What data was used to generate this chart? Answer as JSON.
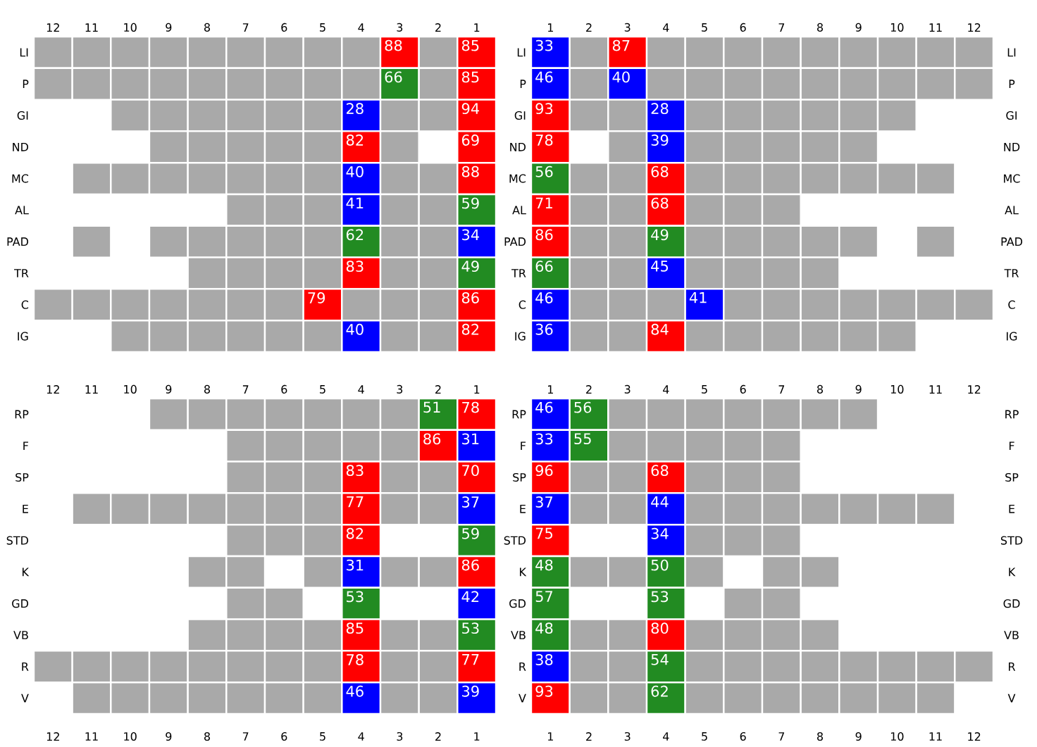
{
  "chart_data": [
    {
      "type": "heatmap",
      "data_labels": true,
      "categories": [
        "12",
        "11",
        "10",
        "9",
        "8",
        "7",
        "6",
        "5",
        "4",
        "3",
        "2",
        "1"
      ],
      "y_categories": [
        "LI",
        "P",
        "GI",
        "ND",
        "MC",
        "AL",
        "PAD",
        "TR",
        "C",
        "IG"
      ],
      "cells": [
        [
          null,
          null,
          null,
          null,
          null,
          null,
          null,
          null,
          null,
          88,
          null,
          85
        ],
        [
          null,
          null,
          null,
          null,
          null,
          null,
          null,
          null,
          null,
          66,
          null,
          85
        ],
        [
          null,
          null,
          null,
          null,
          null,
          null,
          null,
          null,
          28,
          null,
          null,
          94
        ],
        [
          null,
          null,
          null,
          null,
          null,
          null,
          null,
          null,
          82,
          null,
          null,
          69
        ],
        [
          null,
          null,
          null,
          null,
          null,
          null,
          null,
          null,
          40,
          null,
          null,
          88
        ],
        [
          null,
          null,
          null,
          null,
          null,
          null,
          null,
          null,
          41,
          null,
          null,
          59
        ],
        [
          null,
          null,
          null,
          null,
          null,
          null,
          null,
          null,
          62,
          null,
          null,
          34
        ],
        [
          null,
          null,
          null,
          null,
          null,
          null,
          null,
          null,
          83,
          null,
          null,
          49
        ],
        [
          null,
          null,
          null,
          null,
          null,
          null,
          null,
          79,
          null,
          null,
          null,
          86
        ],
        [
          null,
          null,
          null,
          null,
          null,
          null,
          null,
          null,
          40,
          null,
          null,
          82
        ]
      ],
      "colors": [
        [
          "#a9a9a9",
          "#a9a9a9",
          "#a9a9a9",
          "#a9a9a9",
          "#a9a9a9",
          "#a9a9a9",
          "#a9a9a9",
          "#a9a9a9",
          "#a9a9a9",
          "#ff0000",
          "#a9a9a9",
          "#ff0000"
        ],
        [
          "#a9a9a9",
          "#a9a9a9",
          "#a9a9a9",
          "#a9a9a9",
          "#a9a9a9",
          "#a9a9a9",
          "#a9a9a9",
          "#a9a9a9",
          "#a9a9a9",
          "#228b22",
          "#a9a9a9",
          "#ff0000"
        ],
        [
          null,
          null,
          "#a9a9a9",
          "#a9a9a9",
          "#a9a9a9",
          "#a9a9a9",
          "#a9a9a9",
          "#a9a9a9",
          "#0000ff",
          "#a9a9a9",
          "#a9a9a9",
          "#ff0000"
        ],
        [
          null,
          null,
          null,
          "#a9a9a9",
          "#a9a9a9",
          "#a9a9a9",
          "#a9a9a9",
          "#a9a9a9",
          "#ff0000",
          "#a9a9a9",
          null,
          "#ff0000"
        ],
        [
          null,
          "#a9a9a9",
          "#a9a9a9",
          "#a9a9a9",
          "#a9a9a9",
          "#a9a9a9",
          "#a9a9a9",
          "#a9a9a9",
          "#0000ff",
          "#a9a9a9",
          "#a9a9a9",
          "#ff0000"
        ],
        [
          null,
          null,
          null,
          null,
          null,
          "#a9a9a9",
          "#a9a9a9",
          "#a9a9a9",
          "#0000ff",
          "#a9a9a9",
          "#a9a9a9",
          "#228b22"
        ],
        [
          null,
          "#a9a9a9",
          null,
          "#a9a9a9",
          "#a9a9a9",
          "#a9a9a9",
          "#a9a9a9",
          "#a9a9a9",
          "#228b22",
          "#a9a9a9",
          "#a9a9a9",
          "#0000ff"
        ],
        [
          null,
          null,
          null,
          null,
          "#a9a9a9",
          "#a9a9a9",
          "#a9a9a9",
          "#a9a9a9",
          "#ff0000",
          "#a9a9a9",
          "#a9a9a9",
          "#228b22"
        ],
        [
          "#a9a9a9",
          "#a9a9a9",
          "#a9a9a9",
          "#a9a9a9",
          "#a9a9a9",
          "#a9a9a9",
          "#a9a9a9",
          "#ff0000",
          "#a9a9a9",
          "#a9a9a9",
          "#a9a9a9",
          "#ff0000"
        ],
        [
          null,
          null,
          "#a9a9a9",
          "#a9a9a9",
          "#a9a9a9",
          "#a9a9a9",
          "#a9a9a9",
          "#a9a9a9",
          "#0000ff",
          "#a9a9a9",
          "#a9a9a9",
          "#ff0000"
        ]
      ]
    },
    {
      "type": "heatmap",
      "data_labels": true,
      "categories": [
        "1",
        "2",
        "3",
        "4",
        "5",
        "6",
        "7",
        "8",
        "9",
        "10",
        "11",
        "12"
      ],
      "y_categories": [
        "LI",
        "P",
        "GI",
        "ND",
        "MC",
        "AL",
        "PAD",
        "TR",
        "C",
        "IG"
      ],
      "y2_categories": [
        "LI",
        "P",
        "GI",
        "ND",
        "MC",
        "AL",
        "PAD",
        "TR",
        "C",
        "IG"
      ],
      "cells": [
        [
          33,
          null,
          87,
          null,
          null,
          null,
          null,
          null,
          null,
          null,
          null,
          null
        ],
        [
          46,
          null,
          40,
          null,
          null,
          null,
          null,
          null,
          null,
          null,
          null,
          null
        ],
        [
          93,
          null,
          null,
          28,
          null,
          null,
          null,
          null,
          null,
          null,
          null,
          null
        ],
        [
          78,
          null,
          null,
          39,
          null,
          null,
          null,
          null,
          null,
          null,
          null,
          null
        ],
        [
          56,
          null,
          null,
          68,
          null,
          null,
          null,
          null,
          null,
          null,
          null,
          null
        ],
        [
          71,
          null,
          null,
          68,
          null,
          null,
          null,
          null,
          null,
          null,
          null,
          null
        ],
        [
          86,
          null,
          null,
          49,
          null,
          null,
          null,
          null,
          null,
          null,
          null,
          null
        ],
        [
          66,
          null,
          null,
          45,
          null,
          null,
          null,
          null,
          null,
          null,
          null,
          null
        ],
        [
          46,
          null,
          null,
          null,
          41,
          null,
          null,
          null,
          null,
          null,
          null,
          null
        ],
        [
          36,
          null,
          null,
          84,
          null,
          null,
          null,
          null,
          null,
          null,
          null,
          null
        ]
      ],
      "colors": [
        [
          "#0000ff",
          "#a9a9a9",
          "#ff0000",
          "#a9a9a9",
          "#a9a9a9",
          "#a9a9a9",
          "#a9a9a9",
          "#a9a9a9",
          "#a9a9a9",
          "#a9a9a9",
          "#a9a9a9",
          "#a9a9a9"
        ],
        [
          "#0000ff",
          "#a9a9a9",
          "#0000ff",
          "#a9a9a9",
          "#a9a9a9",
          "#a9a9a9",
          "#a9a9a9",
          "#a9a9a9",
          "#a9a9a9",
          "#a9a9a9",
          "#a9a9a9",
          "#a9a9a9"
        ],
        [
          "#ff0000",
          "#a9a9a9",
          "#a9a9a9",
          "#0000ff",
          "#a9a9a9",
          "#a9a9a9",
          "#a9a9a9",
          "#a9a9a9",
          "#a9a9a9",
          "#a9a9a9",
          null,
          null
        ],
        [
          "#ff0000",
          null,
          "#a9a9a9",
          "#0000ff",
          "#a9a9a9",
          "#a9a9a9",
          "#a9a9a9",
          "#a9a9a9",
          "#a9a9a9",
          null,
          null,
          null
        ],
        [
          "#228b22",
          "#a9a9a9",
          "#a9a9a9",
          "#ff0000",
          "#a9a9a9",
          "#a9a9a9",
          "#a9a9a9",
          "#a9a9a9",
          "#a9a9a9",
          "#a9a9a9",
          "#a9a9a9",
          null
        ],
        [
          "#ff0000",
          "#a9a9a9",
          "#a9a9a9",
          "#ff0000",
          "#a9a9a9",
          "#a9a9a9",
          "#a9a9a9",
          null,
          null,
          null,
          null,
          null
        ],
        [
          "#ff0000",
          "#a9a9a9",
          "#a9a9a9",
          "#228b22",
          "#a9a9a9",
          "#a9a9a9",
          "#a9a9a9",
          "#a9a9a9",
          "#a9a9a9",
          null,
          "#a9a9a9",
          null
        ],
        [
          "#228b22",
          "#a9a9a9",
          "#a9a9a9",
          "#0000ff",
          "#a9a9a9",
          "#a9a9a9",
          "#a9a9a9",
          "#a9a9a9",
          null,
          null,
          null,
          null
        ],
        [
          "#0000ff",
          "#a9a9a9",
          "#a9a9a9",
          "#a9a9a9",
          "#0000ff",
          "#a9a9a9",
          "#a9a9a9",
          "#a9a9a9",
          "#a9a9a9",
          "#a9a9a9",
          "#a9a9a9",
          "#a9a9a9"
        ],
        [
          "#0000ff",
          "#a9a9a9",
          "#a9a9a9",
          "#ff0000",
          "#a9a9a9",
          "#a9a9a9",
          "#a9a9a9",
          "#a9a9a9",
          "#a9a9a9",
          "#a9a9a9",
          null,
          null
        ]
      ]
    },
    {
      "type": "heatmap",
      "data_labels": true,
      "categories": [
        "12",
        "11",
        "10",
        "9",
        "8",
        "7",
        "6",
        "5",
        "4",
        "3",
        "2",
        "1"
      ],
      "y_categories": [
        "RP",
        "F",
        "SP",
        "E",
        "STD",
        "K",
        "GD",
        "VB",
        "R",
        "V"
      ],
      "cells": [
        [
          null,
          null,
          null,
          null,
          null,
          null,
          null,
          null,
          null,
          null,
          51,
          78
        ],
        [
          null,
          null,
          null,
          null,
          null,
          null,
          null,
          null,
          null,
          null,
          86,
          31
        ],
        [
          null,
          null,
          null,
          null,
          null,
          null,
          null,
          null,
          83,
          null,
          null,
          70
        ],
        [
          null,
          null,
          null,
          null,
          null,
          null,
          null,
          null,
          77,
          null,
          null,
          37
        ],
        [
          null,
          null,
          null,
          null,
          null,
          null,
          null,
          null,
          82,
          null,
          null,
          59
        ],
        [
          null,
          null,
          null,
          null,
          null,
          null,
          null,
          null,
          31,
          null,
          null,
          86
        ],
        [
          null,
          null,
          null,
          null,
          null,
          null,
          null,
          null,
          53,
          null,
          null,
          42
        ],
        [
          null,
          null,
          null,
          null,
          null,
          null,
          null,
          null,
          85,
          null,
          null,
          53
        ],
        [
          null,
          null,
          null,
          null,
          null,
          null,
          null,
          null,
          78,
          null,
          null,
          77
        ],
        [
          null,
          null,
          null,
          null,
          null,
          null,
          null,
          null,
          46,
          null,
          null,
          39
        ]
      ],
      "colors": [
        [
          null,
          null,
          null,
          "#a9a9a9",
          "#a9a9a9",
          "#a9a9a9",
          "#a9a9a9",
          "#a9a9a9",
          "#a9a9a9",
          "#a9a9a9",
          "#228b22",
          "#ff0000"
        ],
        [
          null,
          null,
          null,
          null,
          null,
          "#a9a9a9",
          "#a9a9a9",
          "#a9a9a9",
          "#a9a9a9",
          "#a9a9a9",
          "#ff0000",
          "#0000ff"
        ],
        [
          null,
          null,
          null,
          null,
          null,
          "#a9a9a9",
          "#a9a9a9",
          "#a9a9a9",
          "#ff0000",
          "#a9a9a9",
          "#a9a9a9",
          "#ff0000"
        ],
        [
          null,
          "#a9a9a9",
          "#a9a9a9",
          "#a9a9a9",
          "#a9a9a9",
          "#a9a9a9",
          "#a9a9a9",
          "#a9a9a9",
          "#ff0000",
          "#a9a9a9",
          "#a9a9a9",
          "#0000ff"
        ],
        [
          null,
          null,
          null,
          null,
          null,
          "#a9a9a9",
          "#a9a9a9",
          "#a9a9a9",
          "#ff0000",
          null,
          null,
          "#228b22"
        ],
        [
          null,
          null,
          null,
          null,
          "#a9a9a9",
          "#a9a9a9",
          null,
          "#a9a9a9",
          "#0000ff",
          "#a9a9a9",
          "#a9a9a9",
          "#ff0000"
        ],
        [
          null,
          null,
          null,
          null,
          null,
          "#a9a9a9",
          "#a9a9a9",
          null,
          "#228b22",
          null,
          null,
          "#0000ff"
        ],
        [
          null,
          null,
          null,
          null,
          "#a9a9a9",
          "#a9a9a9",
          "#a9a9a9",
          "#a9a9a9",
          "#ff0000",
          "#a9a9a9",
          "#a9a9a9",
          "#228b22"
        ],
        [
          "#a9a9a9",
          "#a9a9a9",
          "#a9a9a9",
          "#a9a9a9",
          "#a9a9a9",
          "#a9a9a9",
          "#a9a9a9",
          "#a9a9a9",
          "#ff0000",
          "#a9a9a9",
          "#a9a9a9",
          "#ff0000"
        ],
        [
          null,
          "#a9a9a9",
          "#a9a9a9",
          "#a9a9a9",
          "#a9a9a9",
          "#a9a9a9",
          "#a9a9a9",
          "#a9a9a9",
          "#0000ff",
          "#a9a9a9",
          "#a9a9a9",
          "#0000ff"
        ]
      ]
    },
    {
      "type": "heatmap",
      "data_labels": true,
      "categories": [
        "1",
        "2",
        "3",
        "4",
        "5",
        "6",
        "7",
        "8",
        "9",
        "10",
        "11",
        "12"
      ],
      "y_categories": [
        "RP",
        "F",
        "SP",
        "E",
        "STD",
        "K",
        "GD",
        "VB",
        "R",
        "V"
      ],
      "y2_categories": [
        "RP",
        "F",
        "SP",
        "E",
        "STD",
        "K",
        "GD",
        "VB",
        "R",
        "V"
      ],
      "cells": [
        [
          46,
          56,
          null,
          null,
          null,
          null,
          null,
          null,
          null,
          null,
          null,
          null
        ],
        [
          33,
          55,
          null,
          null,
          null,
          null,
          null,
          null,
          null,
          null,
          null,
          null
        ],
        [
          96,
          null,
          null,
          68,
          null,
          null,
          null,
          null,
          null,
          null,
          null,
          null
        ],
        [
          37,
          null,
          null,
          44,
          null,
          null,
          null,
          null,
          null,
          null,
          null,
          null
        ],
        [
          75,
          null,
          null,
          34,
          null,
          null,
          null,
          null,
          null,
          null,
          null,
          null
        ],
        [
          48,
          null,
          null,
          50,
          null,
          null,
          null,
          null,
          null,
          null,
          null,
          null
        ],
        [
          57,
          null,
          null,
          53,
          null,
          null,
          null,
          null,
          null,
          null,
          null,
          null
        ],
        [
          48,
          null,
          null,
          80,
          null,
          null,
          null,
          null,
          null,
          null,
          null,
          null
        ],
        [
          38,
          null,
          null,
          54,
          null,
          null,
          null,
          null,
          null,
          null,
          null,
          null
        ],
        [
          93,
          null,
          null,
          62,
          null,
          null,
          null,
          null,
          null,
          null,
          null,
          null
        ]
      ],
      "colors": [
        [
          "#0000ff",
          "#228b22",
          "#a9a9a9",
          "#a9a9a9",
          "#a9a9a9",
          "#a9a9a9",
          "#a9a9a9",
          "#a9a9a9",
          "#a9a9a9",
          null,
          null,
          null
        ],
        [
          "#0000ff",
          "#228b22",
          "#a9a9a9",
          "#a9a9a9",
          "#a9a9a9",
          "#a9a9a9",
          "#a9a9a9",
          null,
          null,
          null,
          null,
          null
        ],
        [
          "#ff0000",
          "#a9a9a9",
          "#a9a9a9",
          "#ff0000",
          "#a9a9a9",
          "#a9a9a9",
          "#a9a9a9",
          null,
          null,
          null,
          null,
          null
        ],
        [
          "#0000ff",
          "#a9a9a9",
          "#a9a9a9",
          "#0000ff",
          "#a9a9a9",
          "#a9a9a9",
          "#a9a9a9",
          "#a9a9a9",
          "#a9a9a9",
          "#a9a9a9",
          "#a9a9a9",
          null
        ],
        [
          "#ff0000",
          null,
          null,
          "#0000ff",
          "#a9a9a9",
          "#a9a9a9",
          "#a9a9a9",
          null,
          null,
          null,
          null,
          null
        ],
        [
          "#228b22",
          "#a9a9a9",
          "#a9a9a9",
          "#228b22",
          "#a9a9a9",
          null,
          "#a9a9a9",
          "#a9a9a9",
          null,
          null,
          null,
          null
        ],
        [
          "#228b22",
          null,
          null,
          "#228b22",
          null,
          "#a9a9a9",
          "#a9a9a9",
          null,
          null,
          null,
          null,
          null
        ],
        [
          "#228b22",
          "#a9a9a9",
          "#a9a9a9",
          "#ff0000",
          "#a9a9a9",
          "#a9a9a9",
          "#a9a9a9",
          "#a9a9a9",
          null,
          null,
          null,
          null
        ],
        [
          "#0000ff",
          "#a9a9a9",
          "#a9a9a9",
          "#228b22",
          "#a9a9a9",
          "#a9a9a9",
          "#a9a9a9",
          "#a9a9a9",
          "#a9a9a9",
          "#a9a9a9",
          "#a9a9a9",
          "#a9a9a9"
        ],
        [
          "#ff0000",
          "#a9a9a9",
          "#a9a9a9",
          "#228b22",
          "#a9a9a9",
          "#a9a9a9",
          "#a9a9a9",
          "#a9a9a9",
          "#a9a9a9",
          "#a9a9a9",
          "#a9a9a9",
          null
        ]
      ]
    }
  ]
}
